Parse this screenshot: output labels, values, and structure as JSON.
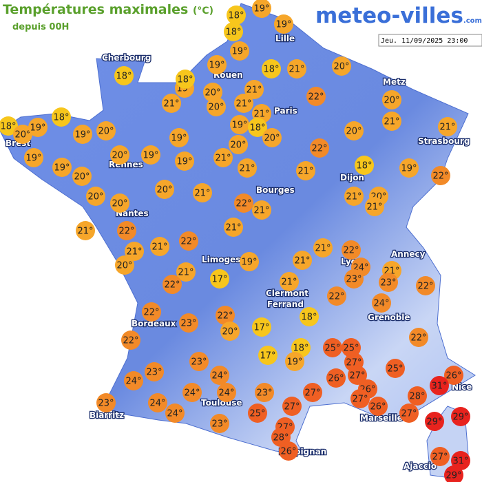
{
  "header": {
    "title": "Températures maximales",
    "unit": "(°C)",
    "subtitle": "depuis 00H",
    "brand": "meteo-villes",
    "brand_suffix": ".com",
    "date": "Jeu. 11/09/2025 23:00"
  },
  "cities": [
    "Cherbourg",
    "Lille",
    "Rouen",
    "Paris",
    "Metz",
    "Strasbourg",
    "Brest",
    "Rennes",
    "Nantes",
    "Dijon",
    "Bourges",
    "Limoges",
    "Annecy",
    "Lyon",
    "Clermont",
    "Ferrand",
    "Grenoble",
    "Bordeaux",
    "Nice",
    "Toulouse",
    "Marseille",
    "Biarritz",
    "Perpignan",
    "Ajaccio"
  ],
  "markers": [
    {
      "value": 18,
      "label": "18°"
    },
    {
      "value": 19,
      "label": "19°"
    },
    {
      "value": 18,
      "label": "18°"
    },
    {
      "value": 19,
      "label": "19°"
    },
    {
      "value": 19,
      "label": "19°"
    },
    {
      "value": 19,
      "label": "19°"
    },
    {
      "value": 18,
      "label": "18°"
    },
    {
      "value": 21,
      "label": "21°"
    },
    {
      "value": 20,
      "label": "20°"
    },
    {
      "value": 18,
      "label": "18°"
    },
    {
      "value": 19,
      "label": "19°"
    },
    {
      "value": 18,
      "label": "18°"
    },
    {
      "value": 20,
      "label": "20°"
    },
    {
      "value": 21,
      "label": "21°"
    },
    {
      "value": 22,
      "label": "22°"
    },
    {
      "value": 21,
      "label": "21°"
    },
    {
      "value": 20,
      "label": "20°"
    },
    {
      "value": 21,
      "label": "21°"
    },
    {
      "value": 21,
      "label": "21°"
    },
    {
      "value": 20,
      "label": "20°"
    },
    {
      "value": 18,
      "label": "18°"
    },
    {
      "value": 18,
      "label": "18°"
    },
    {
      "value": 20,
      "label": "20°"
    },
    {
      "value": 19,
      "label": "19°"
    },
    {
      "value": 19,
      "label": "19°"
    },
    {
      "value": 20,
      "label": "20°"
    },
    {
      "value": 19,
      "label": "19°"
    },
    {
      "value": 18,
      "label": "18°"
    },
    {
      "value": 20,
      "label": "20°"
    },
    {
      "value": 21,
      "label": "21°"
    },
    {
      "value": 21,
      "label": "21°"
    },
    {
      "value": 20,
      "label": "20°"
    },
    {
      "value": 20,
      "label": "20°"
    },
    {
      "value": 19,
      "label": "19°"
    },
    {
      "value": 19,
      "label": "19°"
    },
    {
      "value": 20,
      "label": "20°"
    },
    {
      "value": 22,
      "label": "22°"
    },
    {
      "value": 19,
      "label": "19°"
    },
    {
      "value": 19,
      "label": "19°"
    },
    {
      "value": 20,
      "label": "20°"
    },
    {
      "value": 19,
      "label": "19°"
    },
    {
      "value": 21,
      "label": "21°"
    },
    {
      "value": 21,
      "label": "21°"
    },
    {
      "value": 18,
      "label": "18°"
    },
    {
      "value": 21,
      "label": "21°"
    },
    {
      "value": 19,
      "label": "19°"
    },
    {
      "value": 22,
      "label": "22°"
    },
    {
      "value": 20,
      "label": "20°"
    },
    {
      "value": 20,
      "label": "20°"
    },
    {
      "value": 20,
      "label": "20°"
    },
    {
      "value": 21,
      "label": "21°"
    },
    {
      "value": 22,
      "label": "22°"
    },
    {
      "value": 21,
      "label": "21°"
    },
    {
      "value": 21,
      "label": "21°"
    },
    {
      "value": 20,
      "label": "20°"
    },
    {
      "value": 21,
      "label": "21°"
    },
    {
      "value": 21,
      "label": "21°"
    },
    {
      "value": 22,
      "label": "22°"
    },
    {
      "value": 21,
      "label": "21°"
    },
    {
      "value": 21,
      "label": "21°"
    },
    {
      "value": 21,
      "label": "21°"
    },
    {
      "value": 22,
      "label": "22°"
    },
    {
      "value": 20,
      "label": "20°"
    },
    {
      "value": 21,
      "label": "21°"
    },
    {
      "value": 22,
      "label": "22°"
    },
    {
      "value": 24,
      "label": "24°"
    },
    {
      "value": 19,
      "label": "19°"
    },
    {
      "value": 21,
      "label": "21°"
    },
    {
      "value": 21,
      "label": "21°"
    },
    {
      "value": 23,
      "label": "23°"
    },
    {
      "value": 23,
      "label": "23°"
    },
    {
      "value": 21,
      "label": "21°"
    },
    {
      "value": 22,
      "label": "22°"
    },
    {
      "value": 17,
      "label": "17°"
    },
    {
      "value": 22,
      "label": "22°"
    },
    {
      "value": 21,
      "label": "21°"
    },
    {
      "value": 22,
      "label": "22°"
    },
    {
      "value": 24,
      "label": "24°"
    },
    {
      "value": 22,
      "label": "22°"
    },
    {
      "value": 22,
      "label": "22°"
    },
    {
      "value": 23,
      "label": "23°"
    },
    {
      "value": 18,
      "label": "18°"
    },
    {
      "value": 17,
      "label": "17°"
    },
    {
      "value": 20,
      "label": "20°"
    },
    {
      "value": 22,
      "label": "22°"
    },
    {
      "value": 18,
      "label": "18°"
    },
    {
      "value": 25,
      "label": "25°"
    },
    {
      "value": 25,
      "label": "25°"
    },
    {
      "value": 22,
      "label": "22°"
    },
    {
      "value": 17,
      "label": "17°"
    },
    {
      "value": 19,
      "label": "19°"
    },
    {
      "value": 23,
      "label": "23°"
    },
    {
      "value": 27,
      "label": "27°"
    },
    {
      "value": 25,
      "label": "25°"
    },
    {
      "value": 23,
      "label": "23°"
    },
    {
      "value": 24,
      "label": "24°"
    },
    {
      "value": 26,
      "label": "26°"
    },
    {
      "value": 27,
      "label": "27°"
    },
    {
      "value": 26,
      "label": "26°"
    },
    {
      "value": 31,
      "label": "31°"
    },
    {
      "value": 24,
      "label": "24°"
    },
    {
      "value": 26,
      "label": "26°"
    },
    {
      "value": 27,
      "label": "27°"
    },
    {
      "value": 28,
      "label": "28°"
    },
    {
      "value": 23,
      "label": "23°"
    },
    {
      "value": 24,
      "label": "24°"
    },
    {
      "value": 24,
      "label": "24°"
    },
    {
      "value": 24,
      "label": "24°"
    },
    {
      "value": 23,
      "label": "23°"
    },
    {
      "value": 27,
      "label": "27°"
    },
    {
      "value": 27,
      "label": "27°"
    },
    {
      "value": 26,
      "label": "26°"
    },
    {
      "value": 27,
      "label": "27°"
    },
    {
      "value": 24,
      "label": "24°"
    },
    {
      "value": 25,
      "label": "25°"
    },
    {
      "value": 23,
      "label": "23°"
    },
    {
      "value": 27,
      "label": "27°"
    },
    {
      "value": 29,
      "label": "29°"
    },
    {
      "value": 29,
      "label": "29°"
    },
    {
      "value": 28,
      "label": "28°"
    },
    {
      "value": 26,
      "label": "26°"
    },
    {
      "value": 27,
      "label": "27°"
    },
    {
      "value": 31,
      "label": "31°"
    },
    {
      "value": 29,
      "label": "29°"
    }
  ]
}
